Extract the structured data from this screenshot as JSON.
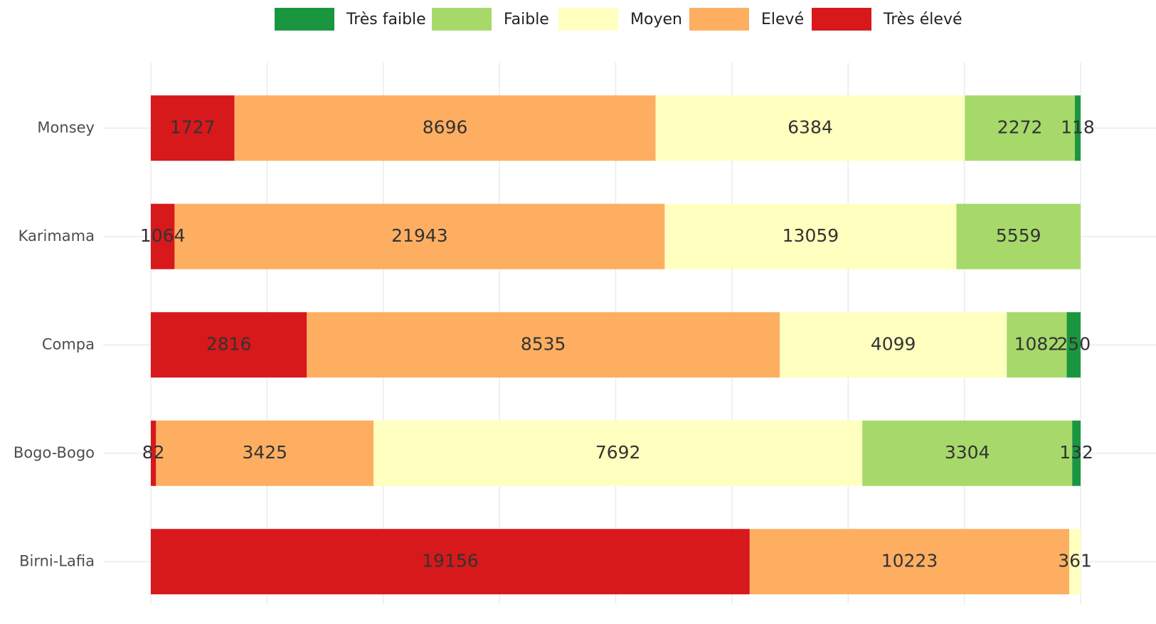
{
  "chart_data": {
    "type": "bar",
    "orientation": "horizontal",
    "stack": "fill",
    "grid": true,
    "legend": "top",
    "categories": [
      "Monsey",
      "Karimama",
      "Compa",
      "Bogo-Bogo",
      "Birni-Lafia"
    ],
    "series": [
      {
        "name": "Très faible",
        "color": "#1a9641",
        "values": [
          118,
          null,
          250,
          132,
          null
        ]
      },
      {
        "name": "Faible",
        "color": "#a6d96a",
        "values": [
          2272,
          5559,
          1082,
          3304,
          null
        ]
      },
      {
        "name": "Moyen",
        "color": "#ffffbf",
        "values": [
          6384,
          13059,
          4099,
          7692,
          361
        ]
      },
      {
        "name": "Elevé",
        "color": "#fdae61",
        "values": [
          8696,
          21943,
          8535,
          3425,
          10223
        ]
      },
      {
        "name": "Très élevé",
        "color": "#d7191c",
        "values": [
          1727,
          1064,
          2816,
          82,
          19156
        ]
      }
    ]
  }
}
